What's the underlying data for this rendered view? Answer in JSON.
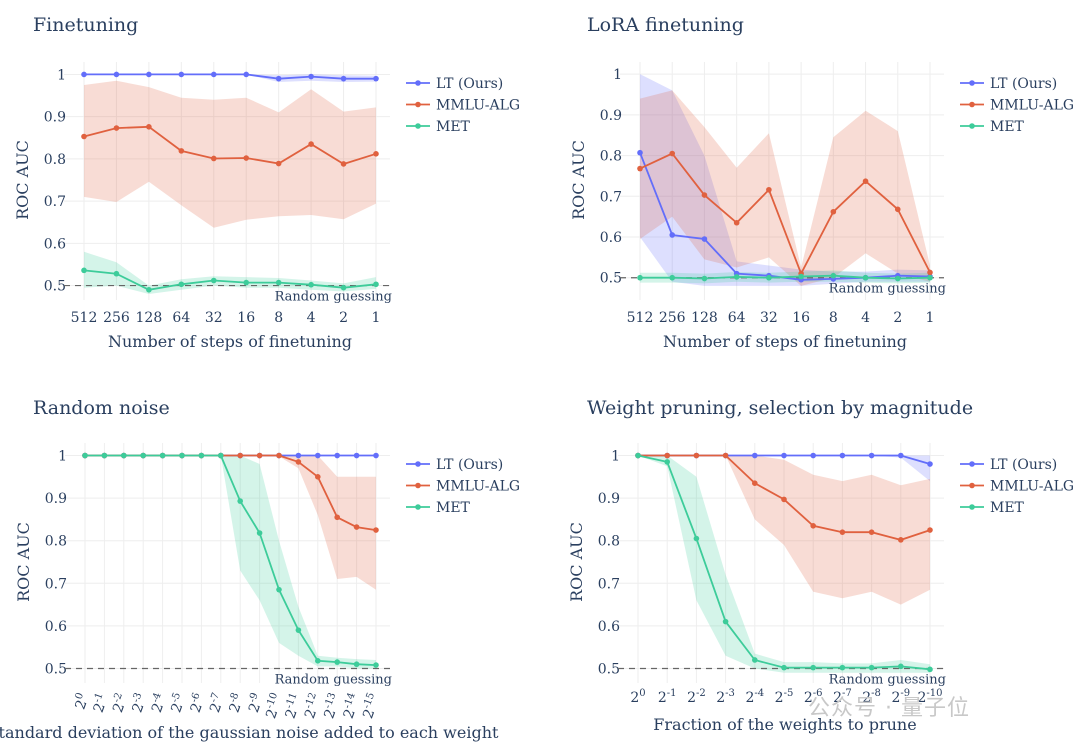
{
  "watermark": "公众号 · 量子位",
  "colors": {
    "LT (Ours)": "#636efa",
    "MMLU-ALG": "#e0613f",
    "MET": "#3dcc9a"
  },
  "chart_data": [
    {
      "type": "line",
      "title": "Finetuning",
      "xlabel": "Number of steps of finetuning",
      "ylabel": "ROC AUC",
      "x_ticks": [
        "512",
        "256",
        "128",
        "64",
        "32",
        "16",
        "8",
        "4",
        "2",
        "1"
      ],
      "ylim": [
        0.48,
        1.02
      ],
      "y_ticks": [
        0.5,
        0.6,
        0.7,
        0.8,
        0.9,
        1
      ],
      "y_tick_labels": [
        "0.5",
        "0.6",
        "0.7",
        "0.8",
        "0.9",
        "1"
      ],
      "reference_line": {
        "y": 0.5,
        "label": "Random guessing"
      },
      "legend": "top-right",
      "series": [
        {
          "name": "LT (Ours)",
          "values": [
            1,
            1,
            1,
            1,
            1,
            1,
            0.99,
            0.995,
            0.99,
            0.99
          ],
          "lower": [
            1,
            1,
            1,
            1,
            1,
            1,
            0.982,
            0.985,
            0.982,
            0.983
          ],
          "upper": [
            1,
            1,
            1,
            1,
            1,
            1,
            0.998,
            1,
            0.998,
            0.997
          ]
        },
        {
          "name": "MMLU-ALG",
          "values": [
            0.853,
            0.873,
            0.876,
            0.819,
            0.801,
            0.802,
            0.789,
            0.835,
            0.788,
            0.812
          ],
          "lower": [
            0.71,
            0.698,
            0.746,
            0.69,
            0.637,
            0.656,
            0.664,
            0.667,
            0.657,
            0.694
          ],
          "upper": [
            0.975,
            0.985,
            0.97,
            0.945,
            0.94,
            0.945,
            0.91,
            0.965,
            0.912,
            0.922
          ]
        },
        {
          "name": "MET",
          "values": [
            0.536,
            0.528,
            0.49,
            0.503,
            0.512,
            0.507,
            0.507,
            0.502,
            0.495,
            0.503
          ],
          "lower": [
            0.495,
            0.5,
            0.48,
            0.49,
            0.5,
            0.495,
            0.495,
            0.49,
            0.486,
            0.492
          ],
          "upper": [
            0.58,
            0.555,
            0.5,
            0.515,
            0.522,
            0.52,
            0.518,
            0.512,
            0.505,
            0.52
          ]
        }
      ]
    },
    {
      "type": "line",
      "title": "LoRA finetuning",
      "xlabel": "Number of steps of finetuning",
      "ylabel": "ROC AUC",
      "x_ticks": [
        "512",
        "256",
        "128",
        "64",
        "32",
        "16",
        "8",
        "4",
        "2",
        "1"
      ],
      "ylim": [
        0.46,
        1.02
      ],
      "y_ticks": [
        0.5,
        0.6,
        0.7,
        0.8,
        0.9,
        1
      ],
      "y_tick_labels": [
        "0.5",
        "0.6",
        "0.7",
        "0.8",
        "0.9",
        "1"
      ],
      "reference_line": {
        "y": 0.5,
        "label": "Random guessing"
      },
      "legend": "top-right",
      "series": [
        {
          "name": "LT (Ours)",
          "values": [
            0.807,
            0.605,
            0.595,
            0.51,
            0.505,
            0.495,
            0.497,
            0.5,
            0.505,
            0.503
          ],
          "lower": [
            0.6,
            0.49,
            0.48,
            0.48,
            0.48,
            0.48,
            0.485,
            0.49,
            0.49,
            0.49
          ],
          "upper": [
            1,
            0.96,
            0.8,
            0.54,
            0.53,
            0.52,
            0.515,
            0.515,
            0.52,
            0.518
          ]
        },
        {
          "name": "MMLU-ALG",
          "values": [
            0.768,
            0.805,
            0.703,
            0.635,
            0.716,
            0.51,
            0.662,
            0.737,
            0.668,
            0.513
          ],
          "lower": [
            0.595,
            0.65,
            0.545,
            0.525,
            0.55,
            0.48,
            0.5,
            0.56,
            0.51,
            0.49
          ],
          "upper": [
            0.94,
            0.96,
            0.87,
            0.77,
            0.855,
            0.525,
            0.845,
            0.91,
            0.86,
            0.53
          ]
        },
        {
          "name": "MET",
          "values": [
            0.5,
            0.5,
            0.498,
            0.502,
            0.5,
            0.503,
            0.505,
            0.5,
            0.498,
            0.5
          ],
          "lower": [
            0.488,
            0.488,
            0.486,
            0.49,
            0.488,
            0.49,
            0.49,
            0.488,
            0.486,
            0.488
          ],
          "upper": [
            0.512,
            0.512,
            0.51,
            0.514,
            0.512,
            0.515,
            0.518,
            0.512,
            0.51,
            0.512
          ]
        }
      ]
    },
    {
      "type": "line",
      "title": "Random noise",
      "xlabel": "Standard deviation of the gaussian noise added to each weight",
      "ylabel": "ROC AUC",
      "x_ticks": [
        "2^0",
        "2^-1",
        "2^-2",
        "2^-3",
        "2^-4",
        "2^-5",
        "2^-6",
        "2^-7",
        "2^-8",
        "2^-9",
        "2^-10",
        "2^-11",
        "2^-12",
        "2^-13",
        "2^-14",
        "2^-15"
      ],
      "x_tick_rotate": true,
      "ylim": [
        0.48,
        1.02
      ],
      "y_ticks": [
        0.5,
        0.6,
        0.7,
        0.8,
        0.9,
        1
      ],
      "y_tick_labels": [
        "0.5",
        "0.6",
        "0.7",
        "0.8",
        "0.9",
        "1"
      ],
      "reference_line": {
        "y": 0.5,
        "label": "Random guessing"
      },
      "legend": "top-right",
      "series": [
        {
          "name": "LT (Ours)",
          "values": [
            1,
            1,
            1,
            1,
            1,
            1,
            1,
            1,
            1,
            1,
            1,
            1,
            1,
            1,
            1,
            1
          ],
          "lower": [
            1,
            1,
            1,
            1,
            1,
            1,
            1,
            1,
            1,
            1,
            1,
            1,
            1,
            1,
            1,
            1
          ],
          "upper": [
            1,
            1,
            1,
            1,
            1,
            1,
            1,
            1,
            1,
            1,
            1,
            1,
            1,
            1,
            1,
            1
          ]
        },
        {
          "name": "MMLU-ALG",
          "values": [
            1,
            1,
            1,
            1,
            1,
            1,
            1,
            1,
            1,
            1,
            1,
            0.985,
            0.95,
            0.855,
            0.832,
            0.825
          ],
          "lower": [
            1,
            1,
            1,
            1,
            1,
            1,
            1,
            1,
            1,
            1,
            0.998,
            0.97,
            0.86,
            0.71,
            0.715,
            0.685
          ],
          "upper": [
            1,
            1,
            1,
            1,
            1,
            1,
            1,
            1,
            1,
            1,
            1,
            1,
            1,
            0.95,
            0.95,
            0.95
          ]
        },
        {
          "name": "MET",
          "values": [
            1,
            1,
            1,
            1,
            1,
            1,
            1,
            1,
            0.893,
            0.818,
            0.685,
            0.59,
            0.518,
            0.515,
            0.51,
            0.508
          ],
          "lower": [
            1,
            1,
            1,
            1,
            1,
            1,
            1,
            1,
            0.73,
            0.66,
            0.56,
            0.53,
            0.505,
            0.505,
            0.5,
            0.5
          ],
          "upper": [
            1,
            1,
            1,
            1,
            1,
            1,
            1,
            1,
            1,
            0.98,
            0.8,
            0.645,
            0.53,
            0.525,
            0.522,
            0.52
          ]
        }
      ]
    },
    {
      "type": "line",
      "title": "Weight pruning, selection by magnitude",
      "xlabel": "Fraction of the weights to prune",
      "ylabel": "ROC AUC",
      "x_ticks": [
        "2^0",
        "2^-1",
        "2^-2",
        "2^-3",
        "2^-4",
        "2^-5",
        "2^-6",
        "2^-7",
        "2^-8",
        "2^-9",
        "2^-10"
      ],
      "ylim": [
        0.48,
        1.02
      ],
      "y_ticks": [
        0.5,
        0.6,
        0.7,
        0.8,
        0.9,
        1
      ],
      "y_tick_labels": [
        "0.5",
        "0.6",
        "0.7",
        "0.8",
        "0.9",
        "1"
      ],
      "reference_line": {
        "y": 0.5,
        "label": "Random guessing"
      },
      "legend": "top-right",
      "series": [
        {
          "name": "LT (Ours)",
          "values": [
            1,
            1,
            1,
            1,
            1,
            1,
            1,
            1,
            1,
            1,
            0.98
          ],
          "lower": [
            1,
            1,
            1,
            1,
            1,
            1,
            1,
            1,
            1,
            0.995,
            0.94
          ],
          "upper": [
            1,
            1,
            1,
            1,
            1,
            1,
            1,
            1,
            1,
            1,
            1
          ]
        },
        {
          "name": "MMLU-ALG",
          "values": [
            1,
            1,
            1,
            1,
            0.935,
            0.897,
            0.835,
            0.82,
            0.82,
            0.802,
            0.825
          ],
          "lower": [
            1,
            1,
            1,
            1,
            0.85,
            0.79,
            0.68,
            0.665,
            0.68,
            0.65,
            0.685
          ],
          "upper": [
            1,
            1,
            1,
            1,
            1,
            0.99,
            0.955,
            0.94,
            0.955,
            0.93,
            0.945
          ]
        },
        {
          "name": "MET",
          "values": [
            1,
            0.985,
            0.805,
            0.61,
            0.52,
            0.502,
            0.502,
            0.502,
            0.502,
            0.505,
            0.498
          ],
          "lower": [
            1,
            0.975,
            0.66,
            0.53,
            0.5,
            0.49,
            0.49,
            0.49,
            0.49,
            0.49,
            0.49
          ],
          "upper": [
            1,
            1,
            0.95,
            0.72,
            0.535,
            0.515,
            0.515,
            0.512,
            0.512,
            0.52,
            0.51
          ]
        }
      ]
    }
  ]
}
